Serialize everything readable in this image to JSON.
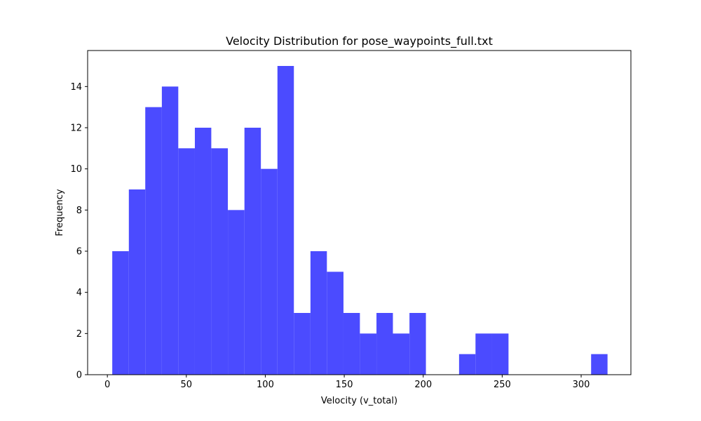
{
  "chart_data": {
    "type": "bar",
    "title": "Velocity Distribution for pose_waypoints_full.txt",
    "xlabel": "Velocity (v_total)",
    "ylabel": "Frequency",
    "xlim": [
      -12.5,
      331.5
    ],
    "ylim": [
      0,
      15.75
    ],
    "xticks": [
      0,
      50,
      100,
      150,
      200,
      250,
      300
    ],
    "yticks": [
      0,
      2,
      4,
      6,
      8,
      10,
      12,
      14
    ],
    "bar_color": "#4b4bff",
    "grid": false,
    "bins": [
      {
        "x0": 3.1,
        "x1": 13.6,
        "count": 6
      },
      {
        "x0": 13.6,
        "x1": 24.0,
        "count": 9
      },
      {
        "x0": 24.0,
        "x1": 34.5,
        "count": 13
      },
      {
        "x0": 34.5,
        "x1": 44.9,
        "count": 14
      },
      {
        "x0": 44.9,
        "x1": 55.4,
        "count": 11
      },
      {
        "x0": 55.4,
        "x1": 65.8,
        "count": 12
      },
      {
        "x0": 65.8,
        "x1": 76.3,
        "count": 11
      },
      {
        "x0": 76.3,
        "x1": 86.8,
        "count": 8
      },
      {
        "x0": 86.8,
        "x1": 97.2,
        "count": 12
      },
      {
        "x0": 97.2,
        "x1": 107.7,
        "count": 10
      },
      {
        "x0": 107.7,
        "x1": 118.1,
        "count": 15
      },
      {
        "x0": 118.1,
        "x1": 128.6,
        "count": 3
      },
      {
        "x0": 128.6,
        "x1": 139.0,
        "count": 6
      },
      {
        "x0": 139.0,
        "x1": 149.5,
        "count": 5
      },
      {
        "x0": 149.5,
        "x1": 159.9,
        "count": 3
      },
      {
        "x0": 159.9,
        "x1": 170.4,
        "count": 2
      },
      {
        "x0": 170.4,
        "x1": 180.8,
        "count": 3
      },
      {
        "x0": 180.8,
        "x1": 191.3,
        "count": 2
      },
      {
        "x0": 191.3,
        "x1": 201.7,
        "count": 3
      },
      {
        "x0": 201.7,
        "x1": 212.2,
        "count": 0
      },
      {
        "x0": 212.2,
        "x1": 222.7,
        "count": 0
      },
      {
        "x0": 222.7,
        "x1": 233.1,
        "count": 1
      },
      {
        "x0": 233.1,
        "x1": 243.6,
        "count": 2
      },
      {
        "x0": 243.6,
        "x1": 254.0,
        "count": 2
      },
      {
        "x0": 254.0,
        "x1": 264.5,
        "count": 0
      },
      {
        "x0": 264.5,
        "x1": 274.9,
        "count": 0
      },
      {
        "x0": 274.9,
        "x1": 285.4,
        "count": 0
      },
      {
        "x0": 285.4,
        "x1": 295.8,
        "count": 0
      },
      {
        "x0": 295.8,
        "x1": 306.3,
        "count": 0
      },
      {
        "x0": 306.3,
        "x1": 316.7,
        "count": 1
      }
    ]
  }
}
